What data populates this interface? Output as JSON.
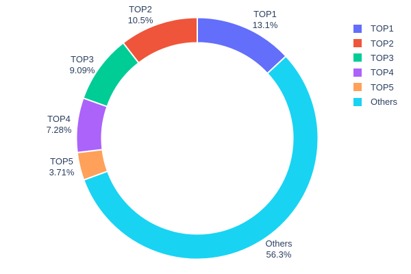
{
  "page": {
    "background": "#ffffff"
  },
  "chart_data": {
    "type": "pie",
    "subtype": "donut",
    "title": "",
    "hole": 0.79,
    "rotation": 0,
    "direction": "counterclockwise",
    "labels_position": "outside",
    "legend_position": "right",
    "text_color": "#2a3f5f",
    "slice_border_color": "#ffffff",
    "series": [
      {
        "name": "TOP1",
        "value": 13.1,
        "percent_label": "13.1%",
        "color": "#636EFA"
      },
      {
        "name": "TOP2",
        "value": 10.5,
        "percent_label": "10.5%",
        "color": "#EF553B"
      },
      {
        "name": "TOP3",
        "value": 9.09,
        "percent_label": "9.09%",
        "color": "#00CC96"
      },
      {
        "name": "TOP4",
        "value": 7.28,
        "percent_label": "7.28%",
        "color": "#AB63FA"
      },
      {
        "name": "TOP5",
        "value": 3.71,
        "percent_label": "3.71%",
        "color": "#FFA15A"
      },
      {
        "name": "Others",
        "value": 56.3,
        "percent_label": "56.3%",
        "color": "#19D3F3"
      }
    ]
  }
}
